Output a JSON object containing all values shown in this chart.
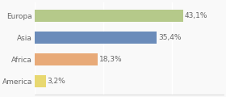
{
  "categories": [
    "Europa",
    "Asia",
    "Africa",
    "America"
  ],
  "values": [
    43.1,
    35.4,
    18.3,
    3.2
  ],
  "labels": [
    "43,1%",
    "35,4%",
    "18,3%",
    "3,2%"
  ],
  "bar_colors": [
    "#b5c98a",
    "#6b8cba",
    "#e8aa78",
    "#e8d870"
  ],
  "background_color": "#f9f9f9",
  "text_color": "#666666",
  "figsize": [
    2.8,
    1.2
  ],
  "dpi": 100,
  "xlim": [
    0,
    55
  ],
  "bar_height": 0.55,
  "label_fontsize": 6.5,
  "tick_fontsize": 6.5
}
